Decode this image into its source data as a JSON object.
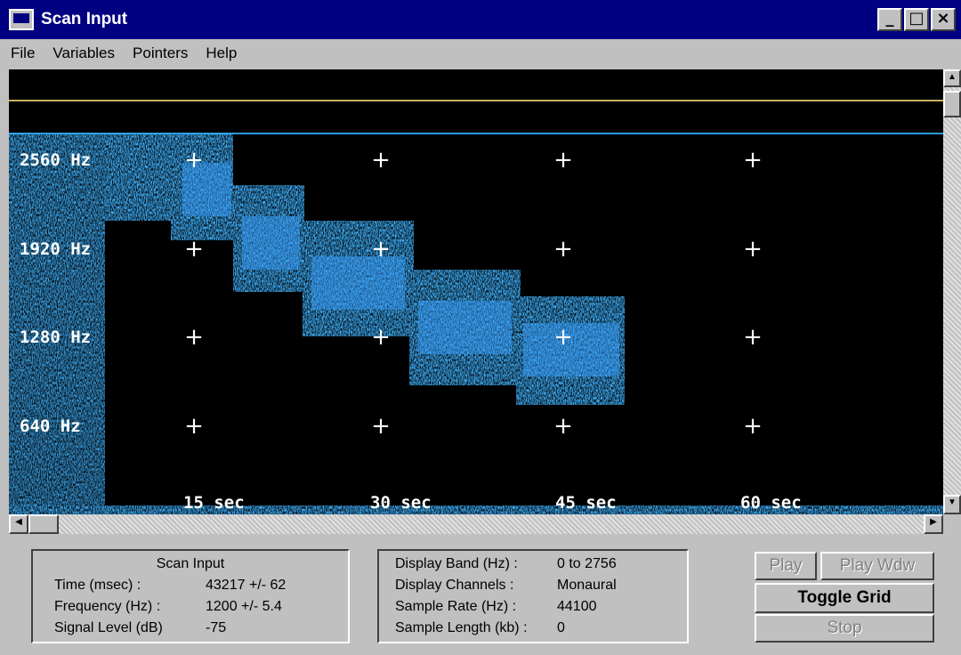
{
  "window": {
    "title": "Scan Input",
    "minimize_glyph": "_",
    "maximize_glyph": "□",
    "close_glyph": "×"
  },
  "menu": [
    {
      "label": "File"
    },
    {
      "label": "Variables"
    },
    {
      "label": "Pointers"
    },
    {
      "label": "Help"
    }
  ],
  "spectrogram": {
    "frequency_labels": [
      "2560 Hz",
      "1920 Hz",
      "1280 Hz",
      "640 Hz"
    ],
    "time_labels": [
      "15 sec",
      "30 sec",
      "45 sec",
      "60 sec"
    ],
    "grid_marker": "+",
    "signal_color": "#1e7cff",
    "trace_color": "#c8b060",
    "baseline_color": "#2a9ad8"
  },
  "status_panel": {
    "heading": "Scan Input",
    "rows": [
      {
        "label": "Time (msec) :",
        "value": "43217 +/- 62"
      },
      {
        "label": "Frequency (Hz) :",
        "value": "1200 +/- 5.4"
      },
      {
        "label": "Signal Level (dB)",
        "value": "-75"
      }
    ]
  },
  "display_panel": {
    "rows": [
      {
        "label": "Display Band (Hz) :",
        "value": "0 to 2756"
      },
      {
        "label": "Display Channels :",
        "value": "Monaural"
      },
      {
        "label": "Sample Rate (Hz) :",
        "value": "44100"
      },
      {
        "label": "Sample Length (kb) :",
        "value": "0"
      }
    ]
  },
  "buttons": {
    "play": "Play",
    "play_window": "Play Wdw",
    "toggle_grid": "Toggle Grid",
    "stop": "Stop"
  },
  "icons": {
    "app": "window-app-icon",
    "scroll_up": "arrow-up-icon",
    "scroll_down": "arrow-down-icon",
    "scroll_left": "arrow-left-icon",
    "scroll_right": "arrow-right-icon"
  }
}
